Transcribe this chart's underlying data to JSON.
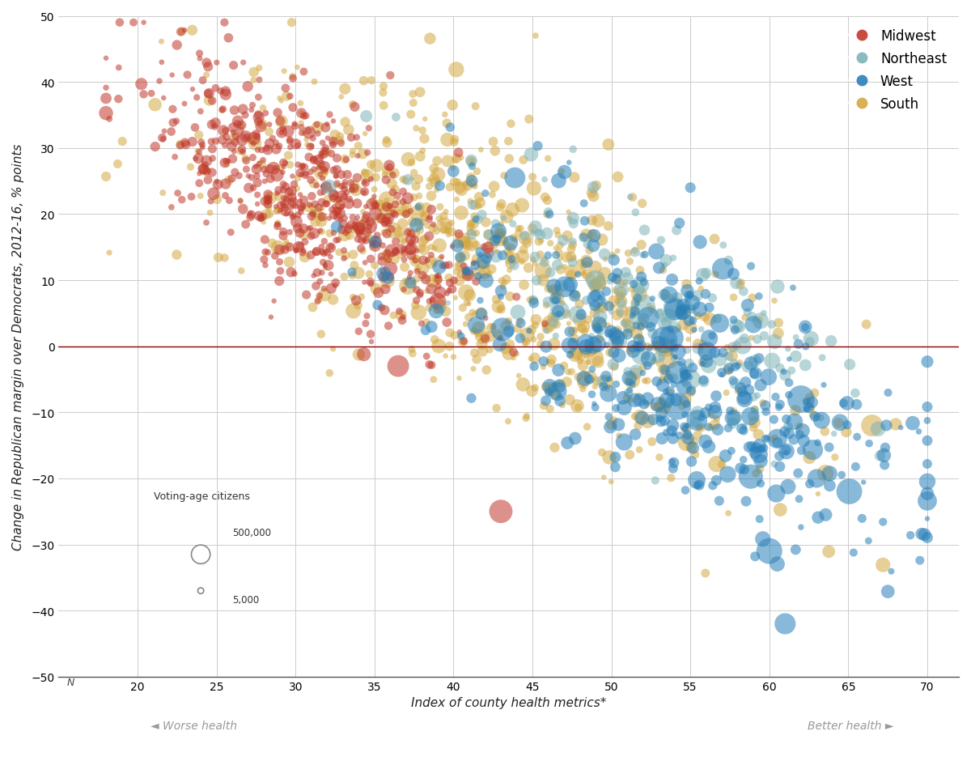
{
  "regions": [
    "Midwest",
    "Northeast",
    "West",
    "South"
  ],
  "colors": {
    "Midwest": "#c0392b",
    "Northeast": "#7fb3b8",
    "West": "#2980b9",
    "South": "#d4a843"
  },
  "alpha": 0.55,
  "xlabel": "Index of county health metrics*",
  "ylabel": "Change in Republican margin over Democrats, 2012-16, % points",
  "xlim": [
    15,
    72
  ],
  "ylim": [
    -50,
    50
  ],
  "xticks": [
    20,
    25,
    30,
    35,
    40,
    45,
    50,
    55,
    60,
    65,
    70
  ],
  "yticks": [
    -50,
    -40,
    -30,
    -20,
    -10,
    0,
    10,
    20,
    30,
    40,
    50
  ],
  "worse_health_label": "◄ Worse health",
  "better_health_label": "Better health ►",
  "size_legend_label": "Voting-age citizens",
  "hline_color": "#8b0000",
  "hline_y": 0,
  "grid_color": "#cccccc",
  "background_color": "#ffffff",
  "axis_label_fontsize": 11,
  "tick_fontsize": 10,
  "legend_fontsize": 12
}
